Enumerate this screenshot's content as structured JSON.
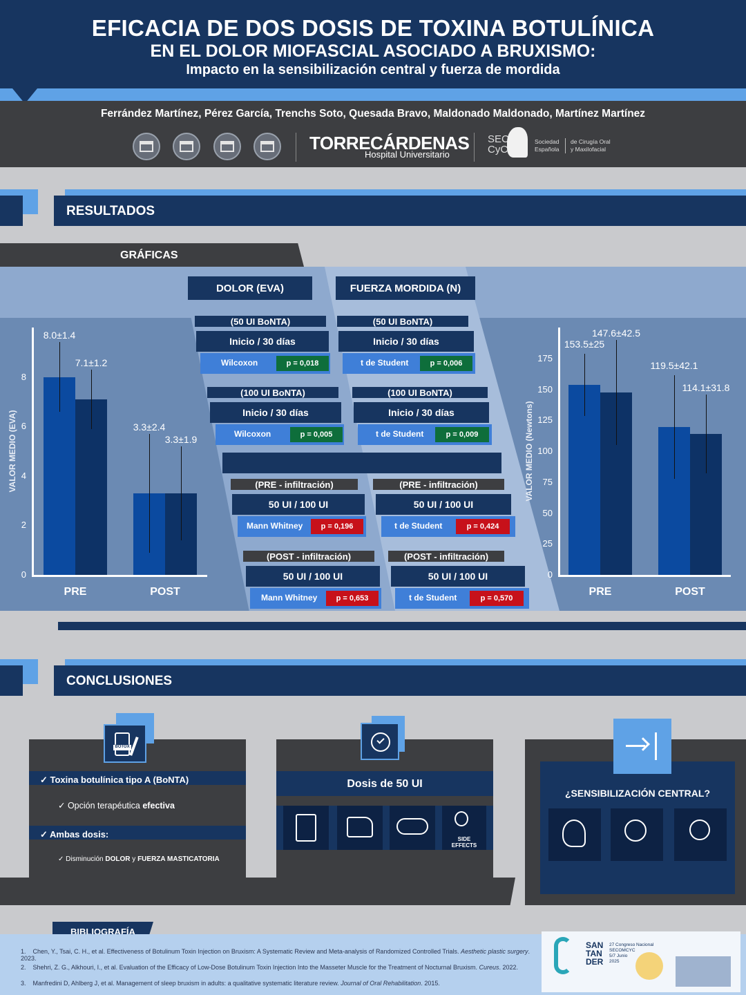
{
  "header": {
    "title_line1": "EFICACIA DE DOS DOSIS DE TOXINA BOTULÍNICA",
    "title_line2": "EN EL DOLOR MIOFASCIAL ASOCIADO A BRUXISMO:",
    "title_line3": "Impacto en la sensibilización central y fuerza de mordida",
    "authors": "Ferrández Martínez, Pérez García, Trenchs Soto, Quesada Bravo, Maldonado Maldonado, Martínez Martínez",
    "hospital": "TORRECÁRDENAS",
    "hospital_sub": "Hospital Universitario",
    "seco_line1": "SECO",
    "seco_line2": "CyC",
    "society_1": "Sociedad",
    "society_2": "Española",
    "society_3": "de Cirugía Oral",
    "society_4": "y Maxilofacial"
  },
  "results": {
    "section_title": "RESULTADOS",
    "subsection": "GRÁFICAS",
    "col_dolor": "DOLOR (EVA)",
    "col_fuerza": "FUERZA MORDIDA (N)"
  },
  "chart_data": [
    {
      "type": "bar",
      "ylabel": "VALOR MEDIO (EVA)",
      "categories": [
        "PRE",
        "POST"
      ],
      "ylim": [
        0,
        10
      ],
      "yticks": [
        "0",
        "2",
        "4",
        "6",
        "8"
      ],
      "series": [
        {
          "values": [
            8.0,
            3.3
          ],
          "errors": [
            1.4,
            2.4
          ],
          "labels": [
            "8.0±1.4",
            "3.3±2.4"
          ],
          "color": "#0b4aa0"
        },
        {
          "values": [
            7.1,
            3.3
          ],
          "errors": [
            1.2,
            1.9
          ],
          "labels": [
            "7.1±1.2",
            "3.3±1.9"
          ],
          "color": "#0d3266"
        }
      ]
    },
    {
      "type": "bar",
      "ylabel": "VALOR MEDIO (Newtons)",
      "categories": [
        "PRE",
        "POST"
      ],
      "ylim": [
        0,
        200
      ],
      "yticks": [
        "0",
        "25",
        "50",
        "75",
        "100",
        "125",
        "150",
        "175"
      ],
      "series": [
        {
          "values": [
            153.5,
            119.5
          ],
          "errors": [
            25,
            42.1
          ],
          "labels": [
            "153.5±25",
            "119.5±42.1"
          ],
          "color": "#0b4aa0"
        },
        {
          "values": [
            147.6,
            114.1
          ],
          "errors": [
            42.5,
            31.8
          ],
          "labels": [
            "147.6±42.5",
            "114.1±31.8"
          ],
          "color": "#0d3266"
        }
      ]
    }
  ],
  "tests": {
    "d50_head": "(50 UI BoNTA)",
    "d50_row": "Inicio   /   30 días",
    "d50_test": "Wilcoxon",
    "d50_p": "p = 0,018",
    "f50_head": "(50 UI BoNTA)",
    "f50_row": "Inicio   /   30 días",
    "f50_test": "t de Student",
    "f50_p": "p = 0,006",
    "d100_head": "(100 UI BoNTA)",
    "d100_row": "Inicio   /   30 días",
    "d100_test": "Wilcoxon",
    "d100_p": "p = 0,005",
    "f100_head": "(100 UI BoNTA)",
    "f100_row": "Inicio   /   30 días",
    "f100_test": "t de Student",
    "f100_p": "p = 0,009",
    "dpre_head": "(PRE - infiltración)",
    "dpre_row": "50 UI   /   100 UI",
    "dpre_test": "Mann Whitney",
    "dpre_p": "p = 0,196",
    "fpre_head": "(PRE - infiltración)",
    "fpre_row": "50 UI   /   100 UI",
    "fpre_test": "t de Student",
    "fpre_p": "p = 0,424",
    "dpost_head": "(POST - infiltración)",
    "dpost_row": "50 UI   /   100 UI",
    "dpost_test": "Mann Whitney",
    "dpost_p": "p = 0,653",
    "fpost_head": "(POST - infiltración)",
    "fpost_row": "50 UI   /   100 UI",
    "fpost_test": "t de Student",
    "fpost_p": "p = 0,570"
  },
  "conclusions": {
    "section_title": "CONCLUSIONES",
    "c1_row1": "✓ Toxina botulínica tipo A (BoNTA)",
    "c1_sub1_a": "✓ Opción terapéutica ",
    "c1_sub1_b": "efectiva",
    "c1_row2": "✓ Ambas dosis:",
    "c1_sub2_a": "✓ Disminución ",
    "c1_sub2_b": "DOLOR",
    "c1_sub2_c": " y ",
    "c1_sub2_d": "FUERZA MASTICATORIA",
    "botox_label": "BOTOX",
    "c2_title": "Dosis de 50 UI",
    "side_effects": "SIDE EFFECTS",
    "c3_title": "¿SENSIBILIZACIÓN CENTRAL?"
  },
  "bibliography": {
    "title": "BIBLIOGRAFÍA",
    "items": [
      {
        "num": "1.",
        "text": "Chen, Y., Tsai, C. H., et al. Effectiveness of Botulinum Toxin Injection on Bruxism: A Systematic Review and Meta-analysis of Randomized Controlled Trials. ",
        "journal": "Aesthetic plastic surgery",
        "year": ". 2023."
      },
      {
        "num": "2.",
        "text": "Shehri, Z. G., Alkhouri, I., et al. Evaluation of the Efficacy of Low-Dose Botulinum Toxin Injection Into the Masseter Muscle for the Treatment of Nocturnal Bruxism. ",
        "journal": "Cureus",
        "year": ". 2022."
      },
      {
        "num": "3.",
        "text": "Manfredini D, Ahlberg J, et al. Management of sleep bruxism in adults: a qualitative systematic literature review. ",
        "journal": "Journal of Oral Rehabilitation",
        "year": ". 2015."
      }
    ],
    "congress_1": "SAN",
    "congress_2": "TAN",
    "congress_3": "DER",
    "congress_info1": "27 Congreso Nacional",
    "congress_info2": "SECOMCYC",
    "congress_info3": "5/7 Junio",
    "congress_info4": "2025"
  }
}
